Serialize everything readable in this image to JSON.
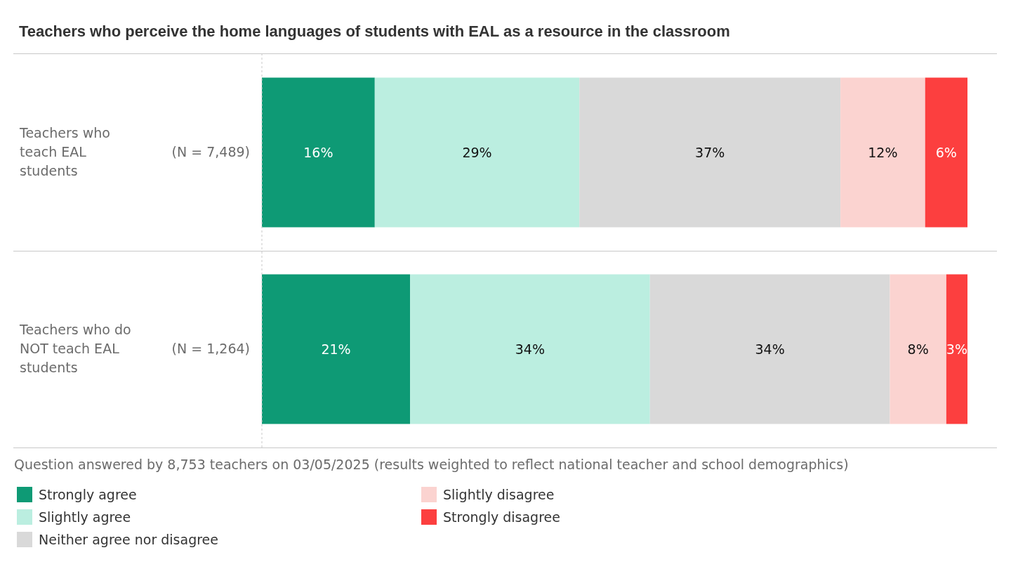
{
  "chart_data": {
    "type": "bar",
    "orientation": "horizontal",
    "stacked": true,
    "title": "Teachers who perceive the home languages of students with EAL as a resource in the classroom",
    "categories": [
      "Teachers who teach EAL students (N = 7,489)",
      "Teachers who do NOT teach EAL students (N = 1,264)"
    ],
    "series": [
      {
        "name": "Strongly agree",
        "color": "#0e9a75",
        "values": [
          16,
          21
        ],
        "value_labels": [
          "16%",
          "21%"
        ]
      },
      {
        "name": "Slightly agree",
        "color": "#bbeee0",
        "values": [
          29,
          34
        ],
        "value_labels": [
          "29%",
          "34%"
        ]
      },
      {
        "name": "Neither agree nor disagree",
        "color": "#d9d9d9",
        "values": [
          37,
          34
        ],
        "value_labels": [
          "37%",
          "34%"
        ]
      },
      {
        "name": "Slightly disagree",
        "color": "#fbd3d0",
        "values": [
          12,
          8
        ],
        "value_labels": [
          "12%",
          "8%"
        ]
      },
      {
        "name": "Strongly disagree",
        "color": "#fc3f3f",
        "values": [
          6,
          3
        ],
        "value_labels": [
          "6%",
          "3%"
        ]
      }
    ],
    "legend": "bottom",
    "tick_labels": "y",
    "annotations": [
      "Question answered by 8,753 teachers on 03/05/2025 (results weighted to reflect national teacher and school demographics)"
    ]
  }
}
